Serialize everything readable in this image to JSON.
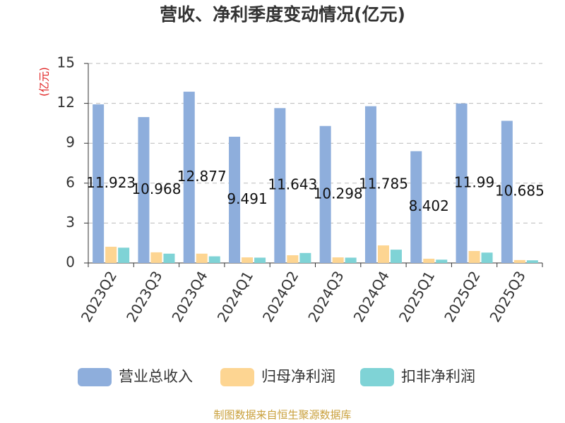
{
  "chart_data": {
    "type": "bar",
    "title": "营收、净利季度变动情况(亿元)",
    "y_axis_label": "(亿元)",
    "source": "制图数据来自恒生聚源数据库",
    "categories": [
      "2023Q2",
      "2023Q3",
      "2023Q4",
      "2024Q1",
      "2024Q2",
      "2024Q3",
      "2024Q4",
      "2025Q1",
      "2025Q2",
      "2025Q3"
    ],
    "series": [
      {
        "name": "营业总收入",
        "color": "#8eaedc",
        "show_value_labels": true,
        "values": [
          11.923,
          10.968,
          12.877,
          9.491,
          11.643,
          10.298,
          11.785,
          8.402,
          11.99,
          10.685
        ]
      },
      {
        "name": "归母净利润",
        "color": "#fdd592",
        "show_value_labels": false,
        "values": [
          1.22,
          0.8,
          0.7,
          0.42,
          0.58,
          0.42,
          1.32,
          0.32,
          0.9,
          0.22
        ]
      },
      {
        "name": "扣非净利润",
        "color": "#7fd3d6",
        "show_value_labels": false,
        "values": [
          1.15,
          0.7,
          0.5,
          0.4,
          0.75,
          0.4,
          1.0,
          0.25,
          0.78,
          0.2
        ]
      }
    ],
    "ylim": [
      0,
      15
    ],
    "yticks": [
      0,
      3,
      6,
      9,
      12,
      15
    ],
    "grid": true
  }
}
